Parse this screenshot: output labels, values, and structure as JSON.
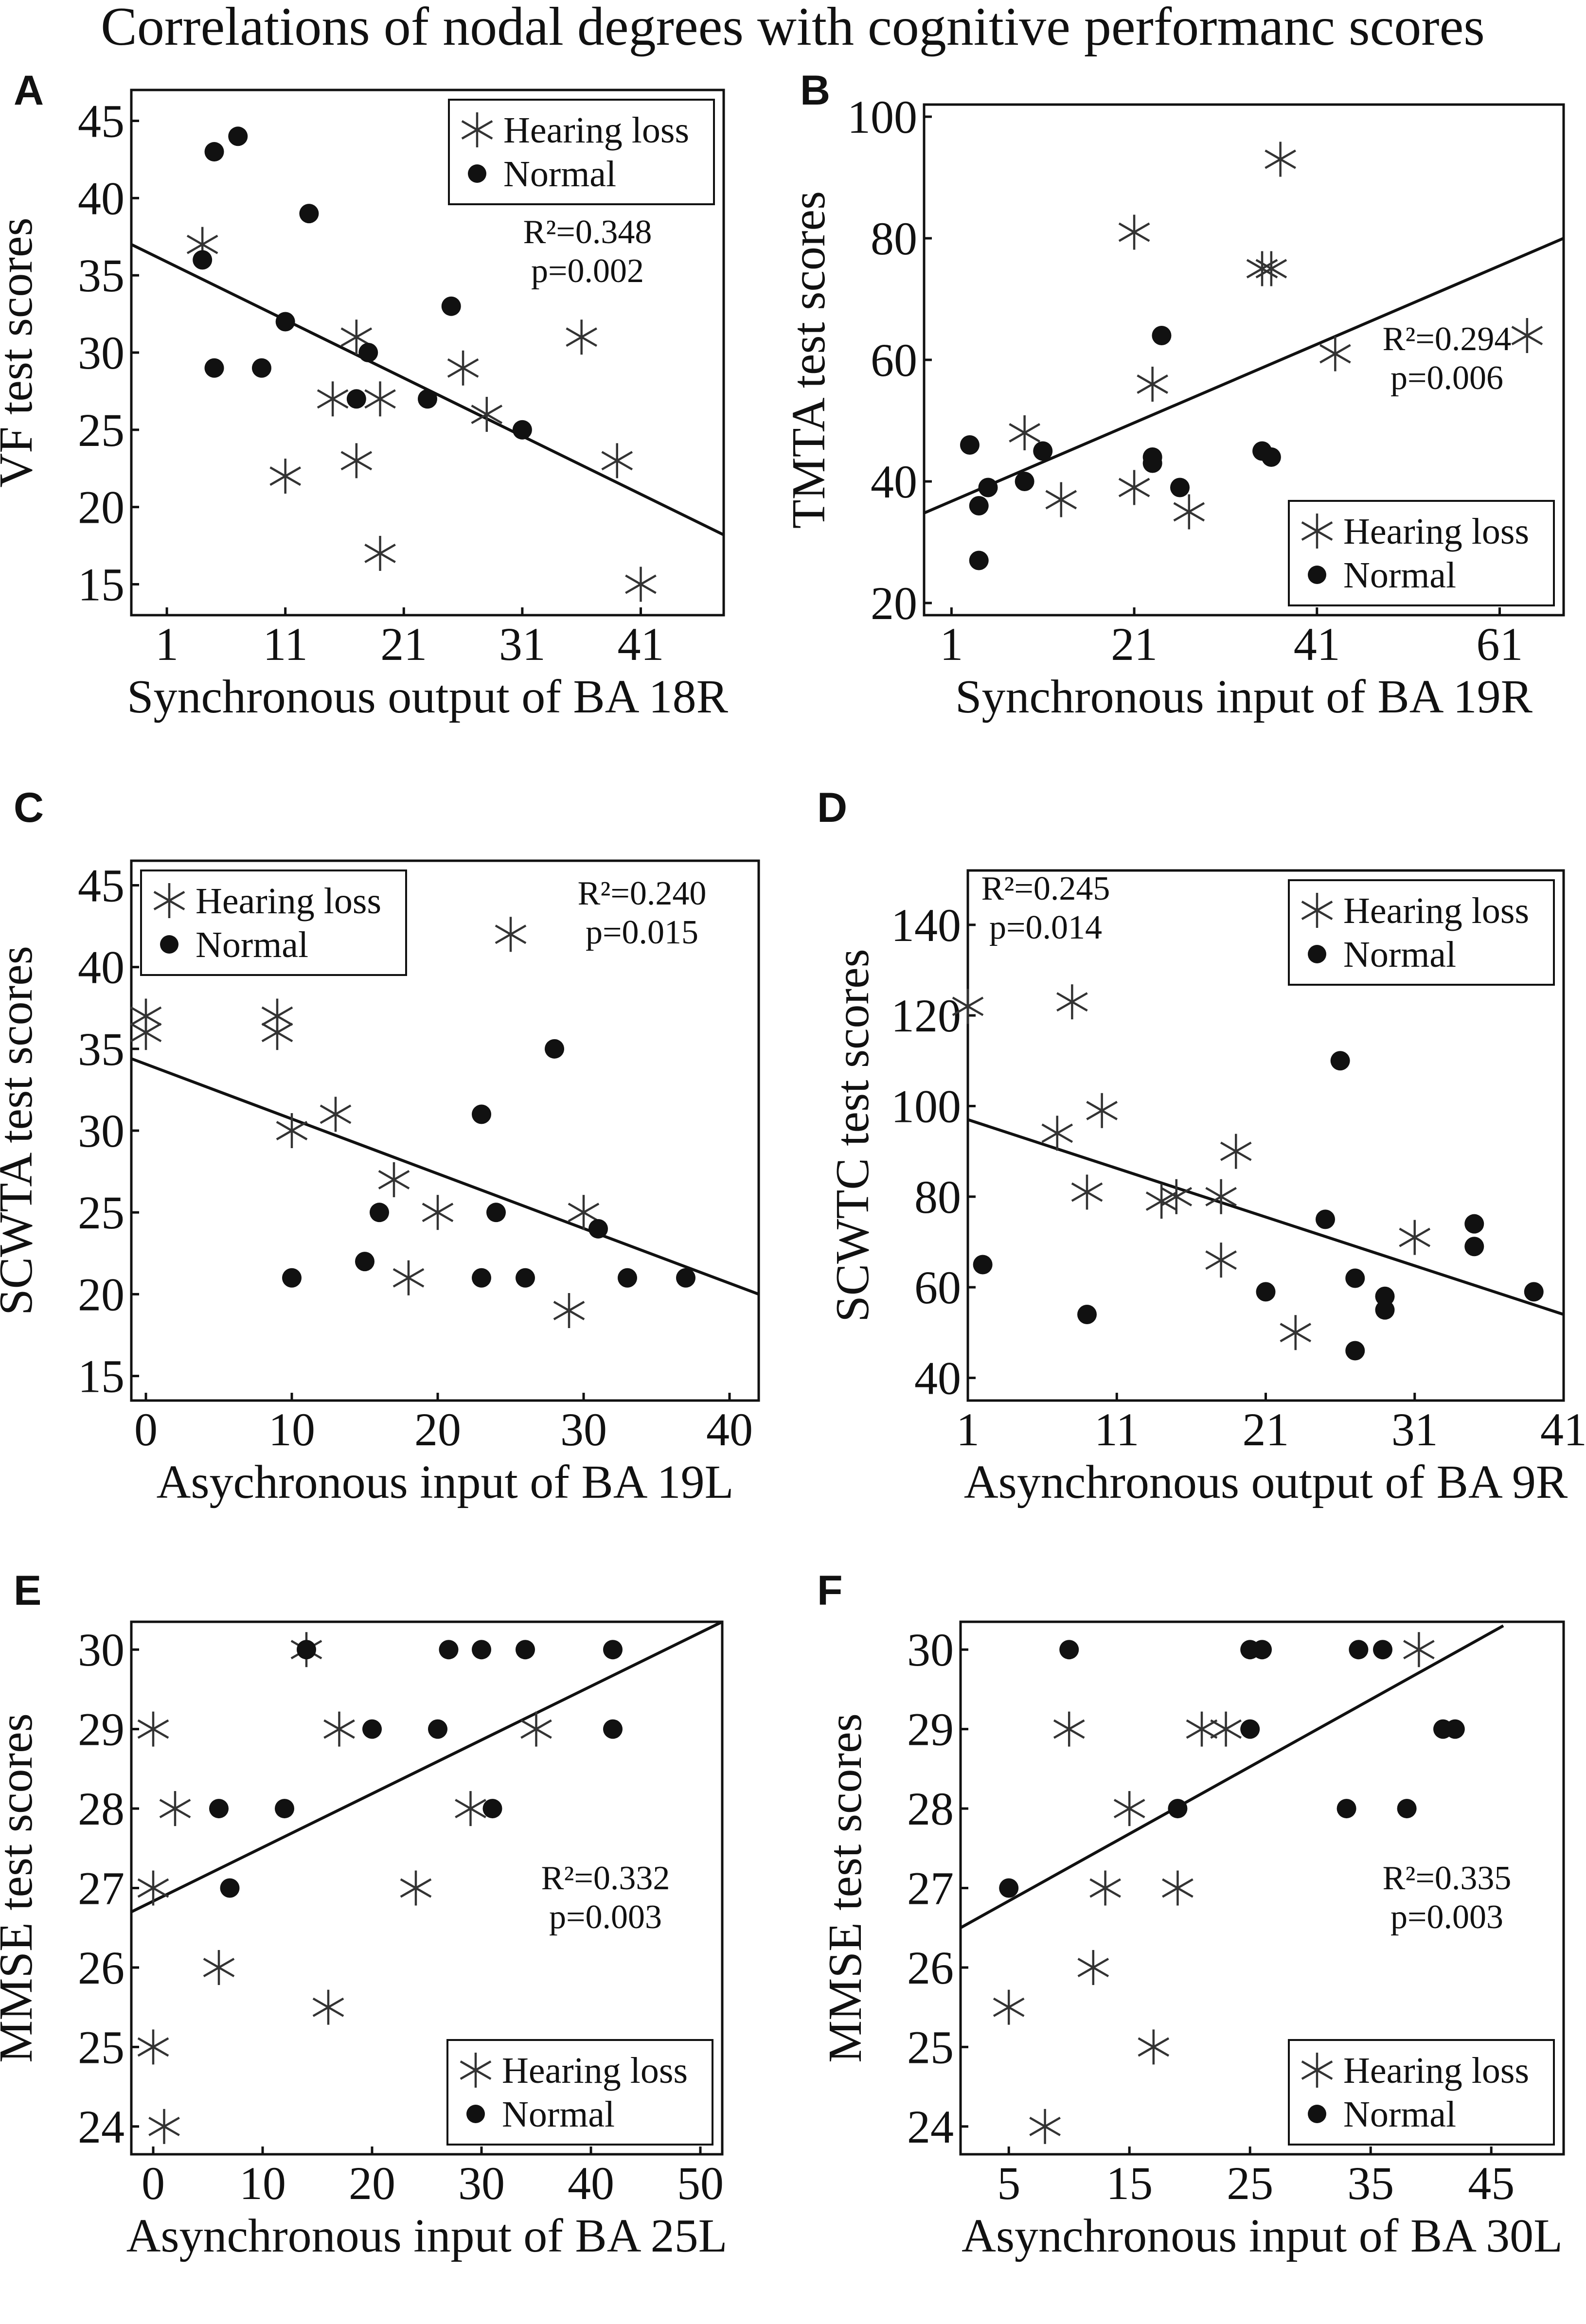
{
  "figure": {
    "title": "Correlations of nodal degrees with cognitive performanc scores"
  },
  "legend_labels": {
    "hl": "Hearing loss",
    "normal": "Normal"
  },
  "chart_data": [
    {
      "panel": "A",
      "type": "scatter",
      "xlabel": "Synchronous output of BA 18R",
      "ylabel": "VF test scores",
      "xlim": [
        -2,
        48
      ],
      "ylim": [
        13,
        47
      ],
      "xticks": [
        1,
        11,
        21,
        31,
        41
      ],
      "yticks": [
        15,
        20,
        25,
        30,
        35,
        40,
        45
      ],
      "legend_position": "top-right",
      "r2": "R²=0.348",
      "p": "p=0.002",
      "fit": [
        [
          -2,
          37
        ],
        [
          48,
          18.2
        ]
      ],
      "series": [
        {
          "name": "Hearing loss",
          "marker": "star",
          "points": [
            [
              4,
              37
            ],
            [
              17,
              31
            ],
            [
              15,
              27
            ],
            [
              19,
              27
            ],
            [
              26,
              29
            ],
            [
              28,
              26
            ],
            [
              36,
              31
            ],
            [
              11,
              22
            ],
            [
              17,
              23
            ],
            [
              19,
              17
            ],
            [
              39,
              23
            ],
            [
              41,
              15
            ]
          ]
        },
        {
          "name": "Normal",
          "marker": "dot",
          "points": [
            [
              4,
              36
            ],
            [
              5,
              43
            ],
            [
              7,
              44
            ],
            [
              13,
              39
            ],
            [
              11,
              32
            ],
            [
              5,
              29
            ],
            [
              9,
              29
            ],
            [
              18,
              30
            ],
            [
              17,
              27
            ],
            [
              23,
              27
            ],
            [
              25,
              33
            ],
            [
              31,
              25
            ]
          ]
        }
      ]
    },
    {
      "panel": "B",
      "type": "scatter",
      "xlabel": "Synchronous input of BA 19R",
      "ylabel": "TMTA test scores",
      "xlim": [
        -2,
        68
      ],
      "ylim": [
        18,
        102
      ],
      "xticks": [
        1,
        21,
        41,
        61
      ],
      "yticks": [
        20,
        40,
        60,
        80,
        100
      ],
      "legend_position": "bottom-right",
      "r2": "R²=0.294",
      "p": "p=0.006",
      "fit": [
        [
          -2,
          34.8
        ],
        [
          68,
          80
        ]
      ],
      "series": [
        {
          "name": "Hearing loss",
          "marker": "star",
          "points": [
            [
              37,
              93
            ],
            [
              21,
              81
            ],
            [
              35,
              75
            ],
            [
              36,
              75
            ],
            [
              43,
              61
            ],
            [
              64,
              64
            ],
            [
              23,
              56
            ],
            [
              9,
              48
            ],
            [
              13,
              37
            ],
            [
              21,
              39
            ],
            [
              27,
              35
            ]
          ]
        },
        {
          "name": "Normal",
          "marker": "dot",
          "points": [
            [
              3,
              46
            ],
            [
              5,
              39
            ],
            [
              4,
              36
            ],
            [
              4,
              27
            ],
            [
              9,
              40
            ],
            [
              11,
              45
            ],
            [
              24,
              64
            ],
            [
              23,
              44
            ],
            [
              23,
              43
            ],
            [
              26,
              39
            ],
            [
              35,
              45
            ],
            [
              36,
              44
            ]
          ]
        }
      ]
    },
    {
      "panel": "C",
      "type": "scatter",
      "xlabel": "Asychronous input of BA 19L",
      "ylabel": "SCWTA test scores",
      "xlim": [
        -1,
        42
      ],
      "ylim": [
        13.5,
        46.5
      ],
      "xticks": [
        0,
        10,
        20,
        30,
        40
      ],
      "yticks": [
        15,
        20,
        25,
        30,
        35,
        40,
        45
      ],
      "legend_position": "top-left",
      "r2": "R²=0.240",
      "p": "p=0.015",
      "fit": [
        [
          -1,
          34.4
        ],
        [
          42,
          20
        ]
      ],
      "series": [
        {
          "name": "Hearing loss",
          "marker": "star",
          "points": [
            [
              0,
              37
            ],
            [
              0,
              36
            ],
            [
              9,
              37
            ],
            [
              9,
              36
            ],
            [
              10,
              30
            ],
            [
              13,
              31
            ],
            [
              17,
              27
            ],
            [
              20,
              25
            ],
            [
              18,
              21
            ],
            [
              25,
              42
            ],
            [
              30,
              25
            ],
            [
              29,
              19
            ]
          ]
        },
        {
          "name": "Normal",
          "marker": "dot",
          "points": [
            [
              10,
              21
            ],
            [
              16,
              25
            ],
            [
              15,
              22
            ],
            [
              23,
              31
            ],
            [
              24,
              25
            ],
            [
              23,
              21
            ],
            [
              26,
              21
            ],
            [
              28,
              35
            ],
            [
              31,
              24
            ],
            [
              33,
              21
            ],
            [
              37,
              21
            ]
          ]
        }
      ]
    },
    {
      "panel": "D",
      "type": "scatter",
      "xlabel": "Asynchronous output of BA 9R",
      "ylabel": "SCWTC test scores",
      "xlim": [
        1,
        41
      ],
      "ylim": [
        35,
        152
      ],
      "xticks": [
        1,
        11,
        21,
        31,
        41
      ],
      "yticks": [
        40,
        60,
        80,
        100,
        120,
        140
      ],
      "legend_position": "top-right",
      "r2": "R²=0.245",
      "p": "p=0.014",
      "fit": [
        [
          1,
          97
        ],
        [
          41,
          54
        ]
      ],
      "series": [
        {
          "name": "Hearing loss",
          "marker": "star",
          "points": [
            [
              1,
              122
            ],
            [
              8,
              123
            ],
            [
              7,
              94
            ],
            [
              10,
              99
            ],
            [
              9,
              81
            ],
            [
              14,
              79
            ],
            [
              15,
              80
            ],
            [
              18,
              80
            ],
            [
              19,
              90
            ],
            [
              18,
              66
            ],
            [
              23,
              50
            ],
            [
              31,
              71
            ]
          ]
        },
        {
          "name": "Normal",
          "marker": "dot",
          "points": [
            [
              2,
              65
            ],
            [
              9,
              54
            ],
            [
              26,
              110
            ],
            [
              25,
              75
            ],
            [
              21,
              59
            ],
            [
              27,
              62
            ],
            [
              27,
              46
            ],
            [
              29,
              58
            ],
            [
              29,
              55
            ],
            [
              35,
              74
            ],
            [
              35,
              69
            ],
            [
              39,
              59
            ]
          ]
        }
      ]
    },
    {
      "panel": "E",
      "type": "scatter",
      "xlabel": "Asynchronous input of BA 25L",
      "ylabel": "MMSE test scores",
      "xlim": [
        -2,
        52
      ],
      "ylim": [
        23.65,
        30.35
      ],
      "xticks": [
        0,
        10,
        20,
        30,
        40,
        50
      ],
      "yticks": [
        24,
        25,
        26,
        27,
        28,
        29,
        30
      ],
      "legend_position": "bottom-right",
      "r2": "R²=0.332",
      "p": "p=0.003",
      "fit": [
        [
          -2,
          26.7
        ],
        [
          52,
          30.35
        ]
      ],
      "series": [
        {
          "name": "Hearing loss",
          "marker": "star",
          "points": [
            [
              0,
              29
            ],
            [
              2,
              28
            ],
            [
              0,
              27
            ],
            [
              6,
              26
            ],
            [
              0,
              25
            ],
            [
              1,
              24
            ],
            [
              14,
              30
            ],
            [
              17,
              29
            ],
            [
              16,
              25.5
            ],
            [
              24,
              27
            ],
            [
              29,
              28
            ],
            [
              35,
              29
            ]
          ]
        },
        {
          "name": "Normal",
          "marker": "dot",
          "points": [
            [
              6,
              28
            ],
            [
              7,
              27
            ],
            [
              12,
              28
            ],
            [
              14,
              30
            ],
            [
              20,
              29
            ],
            [
              26,
              29
            ],
            [
              27,
              30
            ],
            [
              30,
              30
            ],
            [
              34,
              30
            ],
            [
              31,
              28
            ],
            [
              42,
              30
            ],
            [
              42,
              29
            ]
          ]
        }
      ]
    },
    {
      "panel": "F",
      "type": "scatter",
      "xlabel": "Asynchronous input of BA 30L",
      "ylabel": "MMSE test scores",
      "xlim": [
        1,
        51
      ],
      "ylim": [
        23.65,
        30.35
      ],
      "xticks": [
        5,
        15,
        25,
        35,
        45
      ],
      "yticks": [
        24,
        25,
        26,
        27,
        28,
        29,
        30
      ],
      "legend_position": "bottom-right",
      "r2": "R²=0.335",
      "p": "p=0.003",
      "fit": [
        [
          1,
          26.5
        ],
        [
          46,
          30.3
        ]
      ],
      "series": [
        {
          "name": "Hearing loss",
          "marker": "star",
          "points": [
            [
              10,
              29
            ],
            [
              15,
              28
            ],
            [
              13,
              27
            ],
            [
              12,
              26
            ],
            [
              19,
              27
            ],
            [
              17,
              25
            ],
            [
              5,
              25.5
            ],
            [
              8,
              24
            ],
            [
              21,
              29
            ],
            [
              23,
              29
            ],
            [
              39,
              30
            ]
          ]
        },
        {
          "name": "Normal",
          "marker": "dot",
          "points": [
            [
              5,
              27
            ],
            [
              10,
              30
            ],
            [
              19,
              28
            ],
            [
              25,
              30
            ],
            [
              26,
              30
            ],
            [
              25,
              29
            ],
            [
              34,
              30
            ],
            [
              36,
              30
            ],
            [
              33,
              28
            ],
            [
              38,
              28
            ],
            [
              41,
              29
            ],
            [
              42,
              29
            ]
          ]
        }
      ]
    }
  ]
}
